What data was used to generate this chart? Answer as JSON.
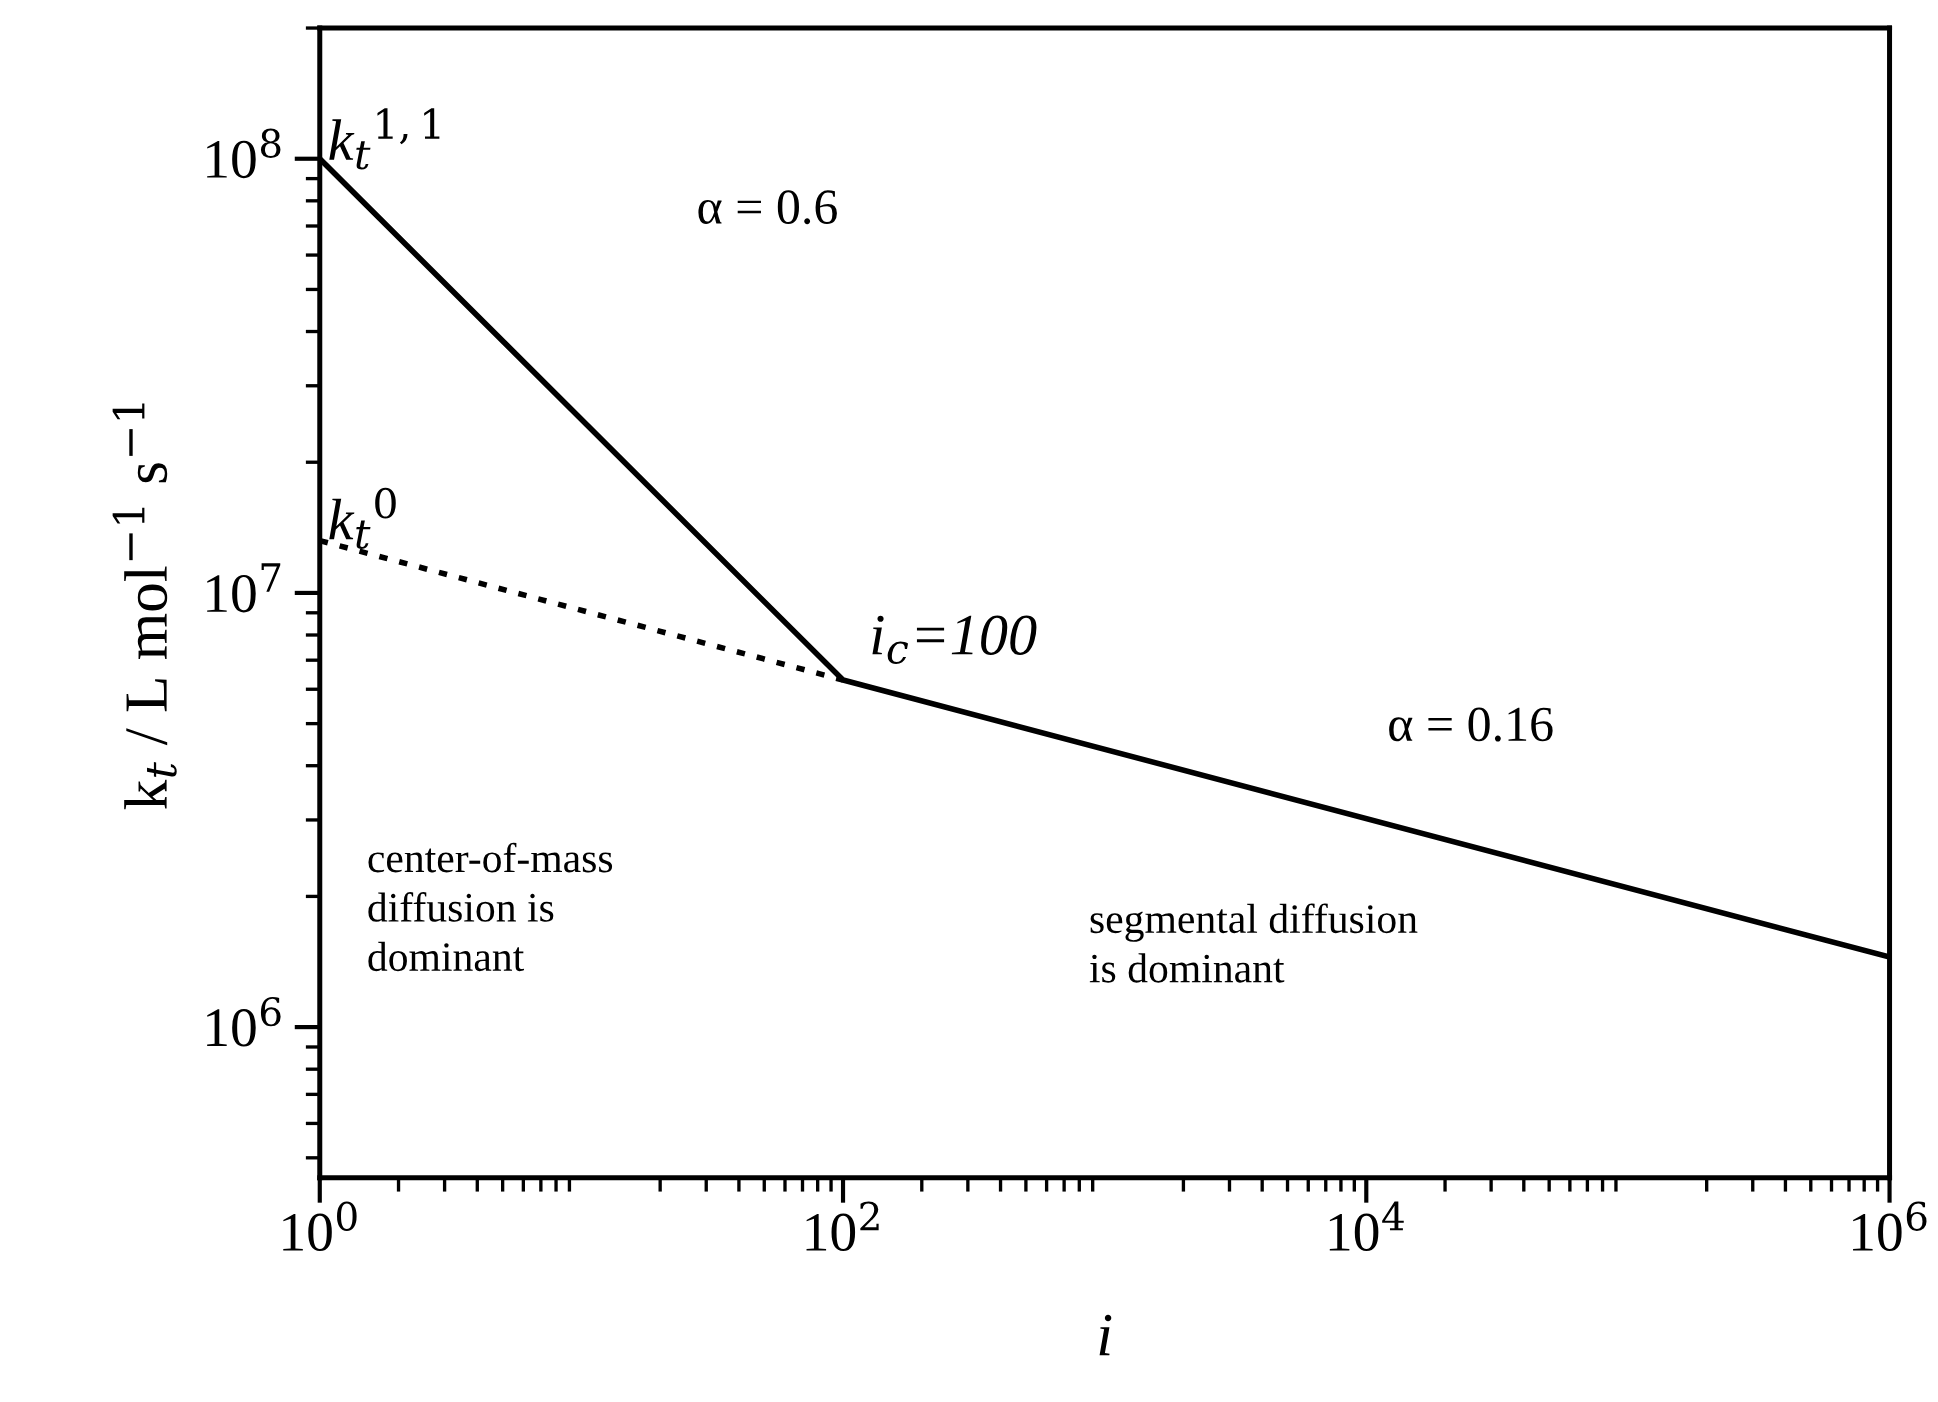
{
  "chart_data": {
    "type": "line",
    "xlabel": "i",
    "ylabel": "k$_{t}$ / L mol$^{−1}$ s$^{−1}$",
    "log": "xy",
    "xlim": [
      1,
      1000000
    ],
    "ylim": [
      450000,
      200000000
    ],
    "xticks": [
      {
        "value": 1,
        "label": "10$^{0}$"
      },
      {
        "value": 100,
        "label": "10$^{2}$"
      },
      {
        "value": 10000,
        "label": "10$^{4}$"
      },
      {
        "value": 1000000,
        "label": "10$^{6}$"
      }
    ],
    "yticks": [
      {
        "value": 1000000,
        "label": "10$^{6}$"
      },
      {
        "value": 10000000,
        "label": "10$^{7}$"
      },
      {
        "value": 100000000,
        "label": "10$^{8}$"
      }
    ],
    "grid": false,
    "legend": false,
    "series": [
      {
        "color": "#000000",
        "x": [
          1,
          100,
          1000000
        ],
        "values": [
          100000000,
          6300000,
          1450000
        ],
        "line_style": "solid"
      },
      {
        "color": "#000000",
        "x": [
          1,
          100
        ],
        "values": [
          13200000,
          6300000
        ],
        "line_style": "dotted"
      }
    ],
    "annotations": [
      "k$_{t}$$^{1,1}$",
      "k$_{t}$$^{0}$",
      "i$_{c}$=100",
      "α = 0.6",
      "α = 0.16",
      "center-of-mass\ndiffusion is\ndominant",
      "segmental diffusion\nis dominant"
    ]
  }
}
